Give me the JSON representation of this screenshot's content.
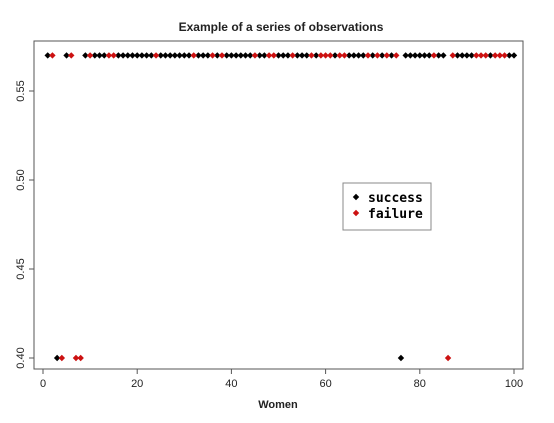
{
  "chart_data": {
    "type": "scatter",
    "title": "Example of a series of observations",
    "xlabel": "Women",
    "ylabel": "",
    "xlim": [
      0,
      100
    ],
    "ylim": [
      0.4,
      0.57
    ],
    "x_ticks": [
      0,
      20,
      40,
      60,
      80,
      100
    ],
    "x_tick_labels": [
      "0",
      "20",
      "40",
      "60",
      "80",
      "100"
    ],
    "y_ticks": [
      0.4,
      0.45,
      0.5,
      0.55
    ],
    "y_tick_labels": [
      "0.40",
      "0.45",
      "0.50",
      "0.55"
    ],
    "grid": false,
    "legend_position": "right-center",
    "series": [
      {
        "name": "success",
        "color": "#000000",
        "points": [
          [
            1,
            0.57
          ],
          [
            3,
            0.4
          ],
          [
            5,
            0.57
          ],
          [
            9,
            0.57
          ],
          [
            11,
            0.57
          ],
          [
            12,
            0.57
          ],
          [
            13,
            0.57
          ],
          [
            16,
            0.57
          ],
          [
            17,
            0.57
          ],
          [
            18,
            0.57
          ],
          [
            19,
            0.57
          ],
          [
            20,
            0.57
          ],
          [
            21,
            0.57
          ],
          [
            22,
            0.57
          ],
          [
            23,
            0.57
          ],
          [
            25,
            0.57
          ],
          [
            26,
            0.57
          ],
          [
            27,
            0.57
          ],
          [
            28,
            0.57
          ],
          [
            29,
            0.57
          ],
          [
            30,
            0.57
          ],
          [
            31,
            0.57
          ],
          [
            33,
            0.57
          ],
          [
            34,
            0.57
          ],
          [
            35,
            0.57
          ],
          [
            37,
            0.57
          ],
          [
            39,
            0.57
          ],
          [
            40,
            0.57
          ],
          [
            41,
            0.57
          ],
          [
            42,
            0.57
          ],
          [
            43,
            0.57
          ],
          [
            44,
            0.57
          ],
          [
            46,
            0.57
          ],
          [
            47,
            0.57
          ],
          [
            50,
            0.57
          ],
          [
            51,
            0.57
          ],
          [
            52,
            0.57
          ],
          [
            54,
            0.57
          ],
          [
            55,
            0.57
          ],
          [
            56,
            0.57
          ],
          [
            58,
            0.57
          ],
          [
            62,
            0.57
          ],
          [
            65,
            0.57
          ],
          [
            66,
            0.57
          ],
          [
            67,
            0.57
          ],
          [
            68,
            0.57
          ],
          [
            70,
            0.57
          ],
          [
            72,
            0.57
          ],
          [
            74,
            0.57
          ],
          [
            76,
            0.4
          ],
          [
            77,
            0.57
          ],
          [
            78,
            0.57
          ],
          [
            79,
            0.57
          ],
          [
            80,
            0.57
          ],
          [
            81,
            0.57
          ],
          [
            82,
            0.57
          ],
          [
            84,
            0.57
          ],
          [
            85,
            0.57
          ],
          [
            88,
            0.57
          ],
          [
            89,
            0.57
          ],
          [
            90,
            0.57
          ],
          [
            91,
            0.57
          ],
          [
            95,
            0.57
          ],
          [
            99,
            0.57
          ],
          [
            100,
            0.57
          ]
        ]
      },
      {
        "name": "failure",
        "color": "#cc1111",
        "points": [
          [
            2,
            0.57
          ],
          [
            4,
            0.4
          ],
          [
            6,
            0.57
          ],
          [
            7,
            0.4
          ],
          [
            8,
            0.4
          ],
          [
            10,
            0.57
          ],
          [
            14,
            0.57
          ],
          [
            15,
            0.57
          ],
          [
            24,
            0.57
          ],
          [
            32,
            0.57
          ],
          [
            36,
            0.57
          ],
          [
            38,
            0.57
          ],
          [
            45,
            0.57
          ],
          [
            48,
            0.57
          ],
          [
            49,
            0.57
          ],
          [
            53,
            0.57
          ],
          [
            57,
            0.57
          ],
          [
            59,
            0.57
          ],
          [
            60,
            0.57
          ],
          [
            61,
            0.57
          ],
          [
            63,
            0.57
          ],
          [
            64,
            0.57
          ],
          [
            69,
            0.57
          ],
          [
            71,
            0.57
          ],
          [
            73,
            0.57
          ],
          [
            75,
            0.57
          ],
          [
            83,
            0.57
          ],
          [
            86,
            0.4
          ],
          [
            87,
            0.57
          ],
          [
            92,
            0.57
          ],
          [
            93,
            0.57
          ],
          [
            94,
            0.57
          ],
          [
            96,
            0.57
          ],
          [
            97,
            0.57
          ],
          [
            98,
            0.57
          ]
        ]
      }
    ]
  }
}
